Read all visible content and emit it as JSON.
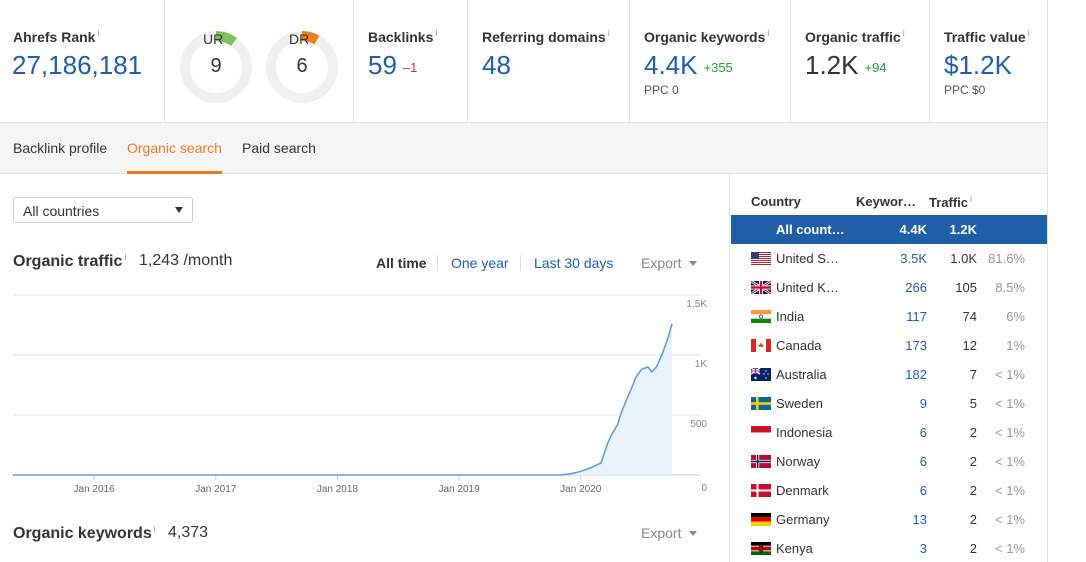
{
  "metrics": {
    "ahrefs_rank": {
      "label": "Ahrefs Rank",
      "info": "i",
      "value": "27,186,181"
    },
    "ur": {
      "label": "UR",
      "info": "i",
      "value": "9",
      "color": "#7dc25b"
    },
    "dr": {
      "label": "DR",
      "info": "i",
      "value": "6",
      "color": "#f07c1c"
    },
    "backlinks": {
      "label": "Backlinks",
      "info": "i",
      "value": "59",
      "delta": "–1"
    },
    "referring_domains": {
      "label": "Referring domains",
      "info": "i",
      "value": "48"
    },
    "organic_keywords": {
      "label": "Organic keywords",
      "info": "i",
      "value": "4.4K",
      "delta": "+355",
      "sub": "PPC 0"
    },
    "organic_traffic": {
      "label": "Organic traffic",
      "info": "i",
      "value": "1.2K",
      "delta": "+94"
    },
    "traffic_value": {
      "label": "Traffic value",
      "info": "i",
      "value": "$1.2K",
      "sub": "PPC $0"
    }
  },
  "tabs": [
    {
      "label": "Backlink profile",
      "active": false
    },
    {
      "label": "Organic search",
      "active": true
    },
    {
      "label": "Paid search",
      "active": false
    }
  ],
  "country_select": {
    "value": "All countries"
  },
  "organic_traffic_section": {
    "title": "Organic traffic",
    "info": "i",
    "value": "1,243 /month",
    "ranges": [
      "All time",
      "One year",
      "Last 30 days"
    ],
    "active_range": "All time",
    "export": "Export"
  },
  "organic_keywords_section": {
    "title": "Organic keywords",
    "info": "i",
    "value": "4,373",
    "export": "Export"
  },
  "chart_data": {
    "type": "area",
    "x_tick_labels": [
      "Jan 2016",
      "Jan 2017",
      "Jan 2018",
      "Jan 2019",
      "Jan 2020"
    ],
    "y_tick_labels": [
      "1.5K",
      "1K",
      "500",
      "0"
    ],
    "ylim": [
      0,
      1500
    ],
    "x_domain": [
      "2015-05",
      "2020-10"
    ],
    "series": [
      {
        "points": [
          [
            "2015-05",
            0
          ],
          [
            "2016-01",
            0
          ],
          [
            "2017-01",
            0
          ],
          [
            "2018-01",
            0
          ],
          [
            "2019-01",
            0
          ],
          [
            "2019-11",
            0
          ],
          [
            "2019-12",
            10
          ],
          [
            "2020-01",
            30
          ],
          [
            "2020-02",
            60
          ],
          [
            "2020-03",
            100
          ],
          [
            "2020-03-20",
            260
          ],
          [
            "2020-04",
            330
          ],
          [
            "2020-04-20",
            420
          ],
          [
            "2020-05",
            520
          ],
          [
            "2020-05-20",
            650
          ],
          [
            "2020-06",
            720
          ],
          [
            "2020-06-15",
            820
          ],
          [
            "2020-07",
            880
          ],
          [
            "2020-07-20",
            900
          ],
          [
            "2020-08",
            860
          ],
          [
            "2020-08-15",
            900
          ],
          [
            "2020-09",
            1000
          ],
          [
            "2020-09-20",
            1150
          ],
          [
            "2020-10",
            1260
          ]
        ]
      }
    ],
    "grid": true,
    "line_color": "#5a9fd6",
    "fill_color": "#eaf3fb"
  },
  "country_table": {
    "headers": {
      "country": "Country",
      "keywords": "Keywor…",
      "traffic": "Traffic",
      "info": "i"
    },
    "rows": [
      {
        "flag": "all",
        "name": "All count…",
        "keywords": "4.4K",
        "traffic": "1.2K",
        "pct": "",
        "selected": true
      },
      {
        "flag": "us",
        "name": "United S…",
        "keywords": "3.5K",
        "traffic": "1.0K",
        "pct": "81.6%"
      },
      {
        "flag": "gb",
        "name": "United K…",
        "keywords": "266",
        "traffic": "105",
        "pct": "8.5%"
      },
      {
        "flag": "in",
        "name": "India",
        "keywords": "117",
        "traffic": "74",
        "pct": "6%"
      },
      {
        "flag": "ca",
        "name": "Canada",
        "keywords": "173",
        "traffic": "12",
        "pct": "1%"
      },
      {
        "flag": "au",
        "name": "Australia",
        "keywords": "182",
        "traffic": "7",
        "pct": "< 1%"
      },
      {
        "flag": "se",
        "name": "Sweden",
        "keywords": "9",
        "traffic": "5",
        "pct": "< 1%"
      },
      {
        "flag": "id",
        "name": "Indonesia",
        "keywords": "6",
        "traffic": "2",
        "pct": "< 1%"
      },
      {
        "flag": "no",
        "name": "Norway",
        "keywords": "6",
        "traffic": "2",
        "pct": "< 1%"
      },
      {
        "flag": "dk",
        "name": "Denmark",
        "keywords": "6",
        "traffic": "2",
        "pct": "< 1%"
      },
      {
        "flag": "de",
        "name": "Germany",
        "keywords": "13",
        "traffic": "2",
        "pct": "< 1%"
      },
      {
        "flag": "ke",
        "name": "Kenya",
        "keywords": "3",
        "traffic": "2",
        "pct": "< 1%"
      }
    ]
  },
  "colors": {
    "accent_blue": "#1f5fa8",
    "accent_orange": "#ee7c1f",
    "positive": "#2b9a3c",
    "negative": "#d0342c"
  }
}
